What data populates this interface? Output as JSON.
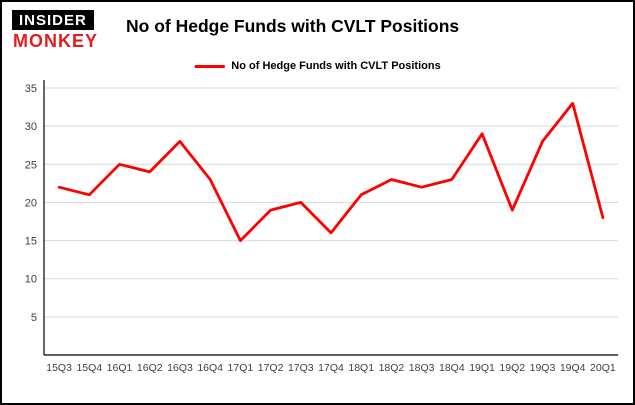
{
  "logo": {
    "line1": "INSIDER",
    "line2": "MONKEY"
  },
  "header": {
    "title": "No of Hedge Funds with CVLT Positions"
  },
  "legend": {
    "label": "No of Hedge Funds with CVLT Positions",
    "color": "#ff0000"
  },
  "chart_data": {
    "type": "line",
    "title": "No of Hedge Funds with CVLT Positions",
    "categories": [
      "15Q3",
      "15Q4",
      "16Q1",
      "16Q2",
      "16Q3",
      "16Q4",
      "17Q1",
      "17Q2",
      "17Q3",
      "17Q4",
      "18Q1",
      "18Q2",
      "18Q3",
      "18Q4",
      "19Q1",
      "19Q2",
      "19Q3",
      "19Q4",
      "20Q1"
    ],
    "series": [
      {
        "name": "No of Hedge Funds with CVLT Positions",
        "color": "#ff0000",
        "values": [
          22,
          21,
          25,
          24,
          28,
          23,
          15,
          19,
          20,
          16,
          21,
          23,
          22,
          23,
          29,
          19,
          28,
          33,
          18
        ]
      }
    ],
    "xlabel": "",
    "ylabel": "",
    "ylim": [
      0,
      35
    ],
    "yticks": [
      5,
      10,
      15,
      20,
      25,
      30,
      35
    ],
    "grid": true,
    "grid_color": "#d9d9d9",
    "axis_color": "#000000",
    "tick_label_color": "#404040",
    "legend_position": "top-center"
  }
}
